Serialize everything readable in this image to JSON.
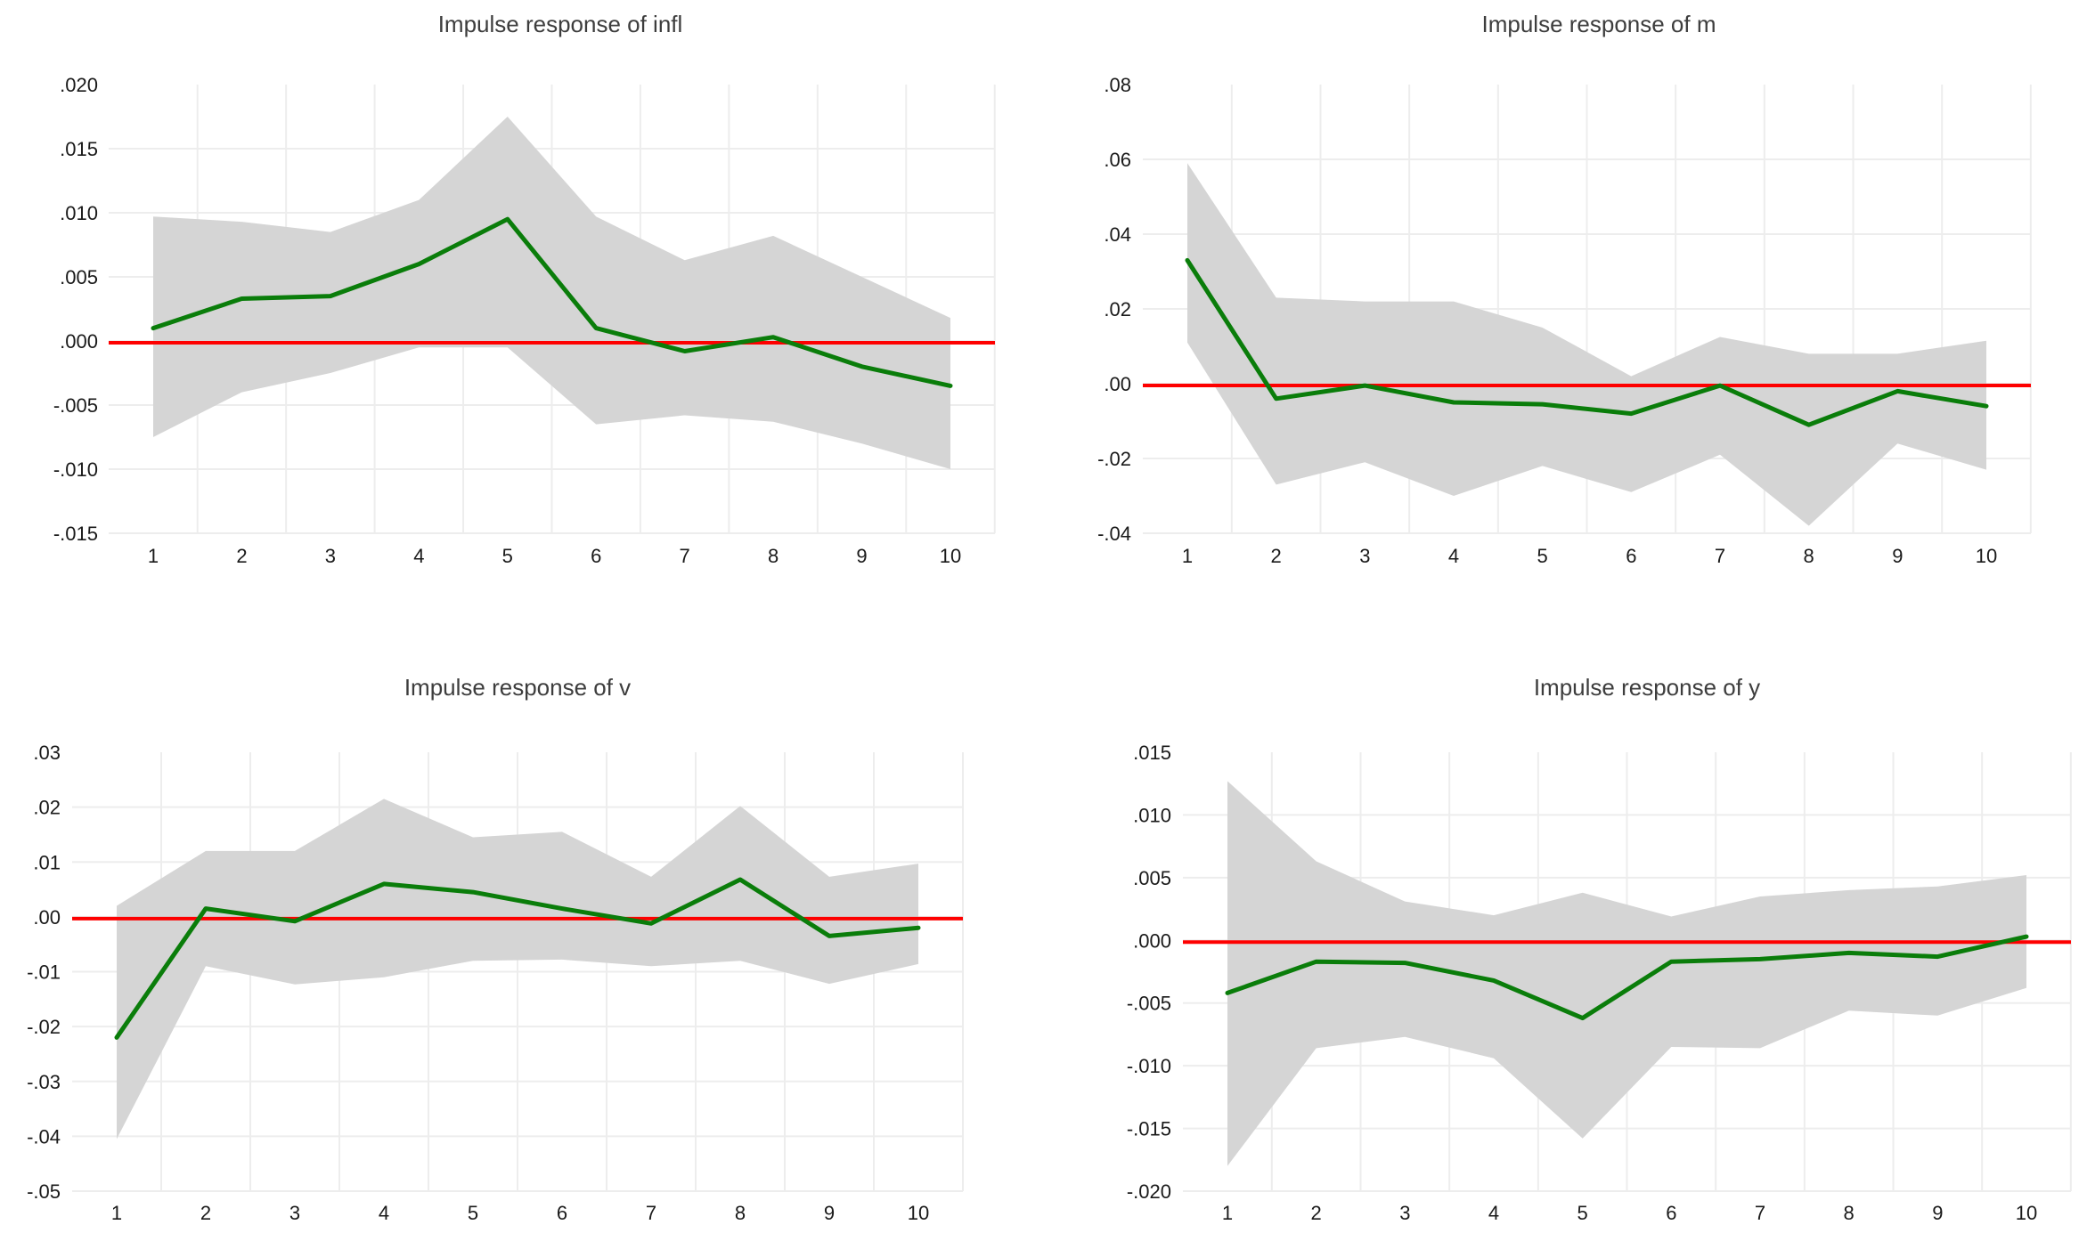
{
  "page": {
    "background": "#ffffff"
  },
  "colors": {
    "irf_line": "#0a7d0a",
    "confidence_band": "#d5d5d5",
    "zero_line": "#fe0000",
    "gridline": "#ededed",
    "tick_text": "#1a1a1a",
    "title_text": "#3d3d3d"
  },
  "chart_data": [
    {
      "type": "line",
      "title": "Impulse response of infl",
      "x": [
        1,
        2,
        3,
        4,
        5,
        6,
        7,
        8,
        9,
        10
      ],
      "y_ticks": [
        ".020",
        ".015",
        ".010",
        ".005",
        ".000",
        "-.005",
        "-.010",
        "-.015"
      ],
      "ylim": [
        0.02,
        -0.015
      ],
      "grid": true,
      "legend_position": "none",
      "zero_line": true,
      "series": [
        {
          "name": "irf",
          "values": [
            0.001,
            0.0033,
            0.0035,
            0.006,
            0.0095,
            0.001,
            -0.0008,
            0.0003,
            -0.002,
            -0.0035
          ]
        },
        {
          "name": "upper_ci",
          "values": [
            0.0097,
            0.0093,
            0.0085,
            0.011,
            0.0175,
            0.0097,
            0.0063,
            0.0082,
            0.005,
            0.0018
          ]
        },
        {
          "name": "lower_ci",
          "values": [
            -0.0075,
            -0.004,
            -0.0025,
            -0.0005,
            -0.0005,
            -0.0065,
            -0.0058,
            -0.0063,
            -0.008,
            -0.01
          ]
        }
      ]
    },
    {
      "type": "line",
      "title": "Impulse response of m",
      "x": [
        1,
        2,
        3,
        4,
        5,
        6,
        7,
        8,
        9,
        10
      ],
      "y_ticks": [
        ".08",
        ".06",
        ".04",
        ".02",
        ".00",
        "-.02",
        "-.04"
      ],
      "ylim": [
        0.08,
        -0.04
      ],
      "grid": true,
      "legend_position": "none",
      "zero_line": true,
      "series": [
        {
          "name": "irf",
          "values": [
            0.033,
            -0.004,
            -0.0005,
            -0.005,
            -0.0055,
            -0.008,
            -0.0005,
            -0.011,
            -0.002,
            -0.006
          ]
        },
        {
          "name": "upper_ci",
          "values": [
            0.059,
            0.023,
            0.022,
            0.022,
            0.015,
            0.002,
            0.0125,
            0.008,
            0.008,
            0.0115
          ]
        },
        {
          "name": "lower_ci",
          "values": [
            0.011,
            -0.027,
            -0.021,
            -0.03,
            -0.022,
            -0.029,
            -0.019,
            -0.038,
            -0.016,
            -0.023
          ]
        }
      ]
    },
    {
      "type": "line",
      "title": "Impulse response of v",
      "x": [
        1,
        2,
        3,
        4,
        5,
        6,
        7,
        8,
        9,
        10
      ],
      "y_ticks": [
        ".03",
        ".02",
        ".01",
        ".00",
        "-.01",
        "-.02",
        "-.03",
        "-.04",
        "-.05"
      ],
      "ylim": [
        0.03,
        -0.05
      ],
      "grid": true,
      "legend_position": "none",
      "zero_line": true,
      "series": [
        {
          "name": "irf",
          "values": [
            -0.022,
            0.0015,
            -0.0008,
            0.006,
            0.0045,
            0.0015,
            -0.0012,
            0.0068,
            -0.0035,
            -0.002
          ]
        },
        {
          "name": "upper_ci",
          "values": [
            0.002,
            0.012,
            0.012,
            0.0215,
            0.0145,
            0.0155,
            0.0073,
            0.0202,
            0.0073,
            0.0097
          ]
        },
        {
          "name": "lower_ci",
          "values": [
            -0.0405,
            -0.009,
            -0.0123,
            -0.011,
            -0.008,
            -0.0078,
            -0.009,
            -0.008,
            -0.0122,
            -0.0086
          ]
        }
      ]
    },
    {
      "type": "line",
      "title": "Impulse response of y",
      "x": [
        1,
        2,
        3,
        4,
        5,
        6,
        7,
        8,
        9,
        10
      ],
      "y_ticks": [
        ".015",
        ".010",
        ".005",
        ".000",
        "-.005",
        "-.010",
        "-.015",
        "-.020"
      ],
      "ylim": [
        0.015,
        -0.02
      ],
      "grid": true,
      "legend_position": "none",
      "zero_line": true,
      "series": [
        {
          "name": "irf",
          "values": [
            -0.0042,
            -0.0017,
            -0.0018,
            -0.0032,
            -0.0062,
            -0.0017,
            -0.0015,
            -0.001,
            -0.0013,
            0.0003
          ]
        },
        {
          "name": "upper_ci",
          "values": [
            0.0127,
            0.0063,
            0.0031,
            0.002,
            0.0038,
            0.0019,
            0.0035,
            0.004,
            0.0043,
            0.0052
          ]
        },
        {
          "name": "lower_ci",
          "values": [
            -0.018,
            -0.0086,
            -0.0077,
            -0.0094,
            -0.0158,
            -0.0085,
            -0.0086,
            -0.0056,
            -0.006,
            -0.0038
          ]
        }
      ]
    }
  ]
}
